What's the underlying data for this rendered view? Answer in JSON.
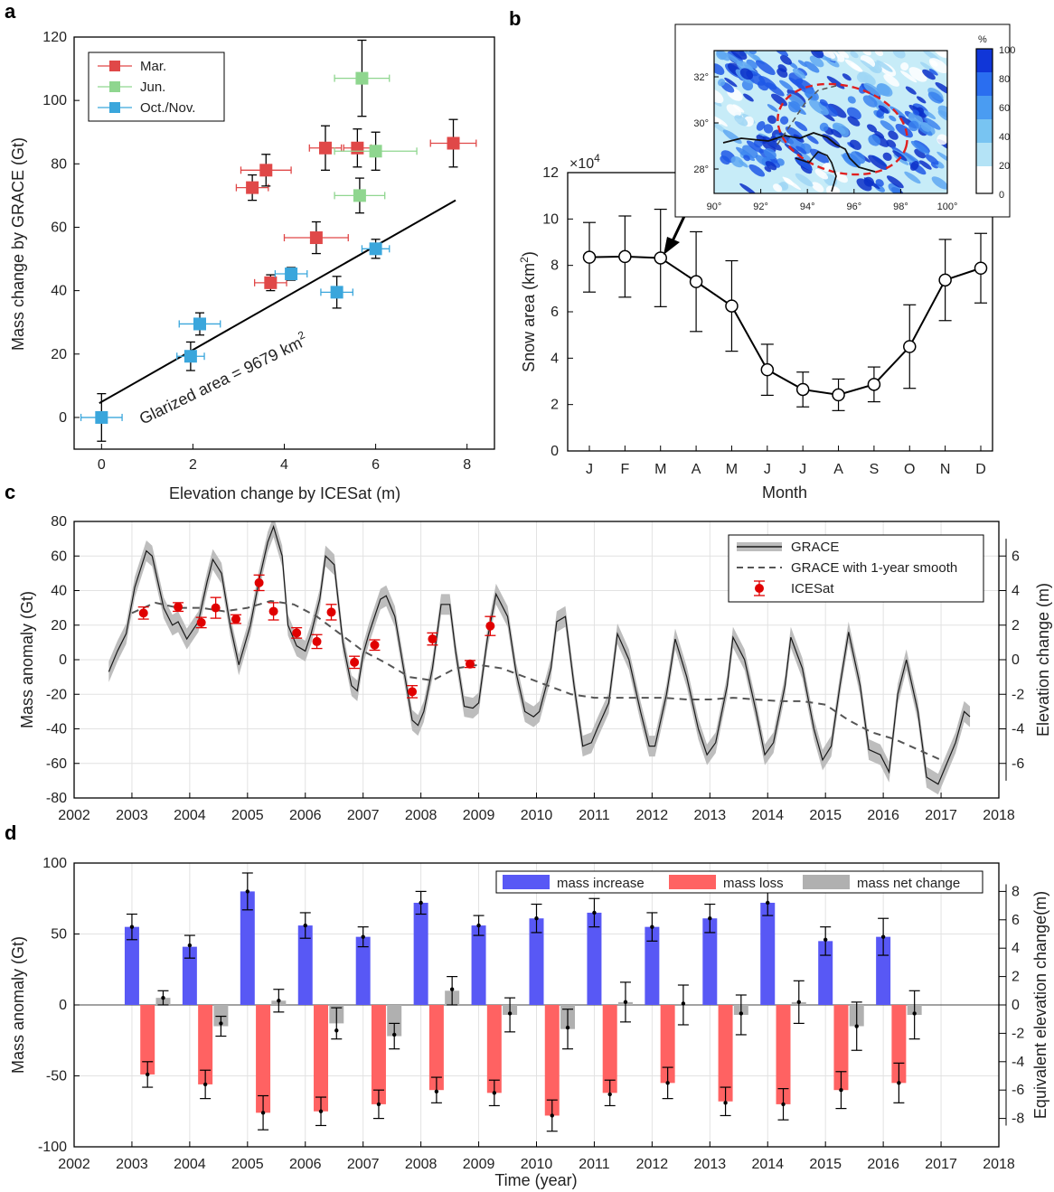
{
  "colors": {
    "mar": "#e04848",
    "jun": "#8fd68f",
    "octnov": "#3aa6dc",
    "grace_band": "#bdbdbd",
    "grace_line": "#1a1a1a",
    "smooth": "#555555",
    "icesat": "#e00000",
    "increase": "#5858f5",
    "loss": "#ff6262",
    "net": "#b0b0b0",
    "ellipse": "#e02020"
  },
  "panels": {
    "a": {
      "label": "a",
      "xlabel": "Elevation change by ICESat (m)",
      "ylabel": "Mass change by GRACE (Gt)",
      "annotation": "Glarized area = 9679 km",
      "annotation_sup": "2",
      "legend": [
        "Mar.",
        "Jun.",
        "Oct./Nov."
      ]
    },
    "b": {
      "label": "b",
      "xlabel": "Month",
      "ylabel": "Snow area (km",
      "ylabel_sup": "2",
      "ylabel_end": ")",
      "multiplier": "×10",
      "multiplier_sup": "4",
      "inset": {
        "xticks": [
          "90°",
          "92°",
          "94°",
          "96°",
          "98°",
          "100°"
        ],
        "yticks": [
          "32°",
          "30°",
          "28°"
        ],
        "colorbar_title": "%",
        "colorbar_ticks": [
          "100",
          "80",
          "60",
          "40",
          "20",
          "0"
        ],
        "icon": "snow-cover-map"
      }
    },
    "c": {
      "label": "c",
      "xlabel": "",
      "ylabel": "Mass anomaly (Gt)",
      "y2label": "Elevation change (m)",
      "legend": [
        "GRACE",
        "GRACE with 1-year smooth",
        "ICESat"
      ]
    },
    "d": {
      "label": "d",
      "xlabel": "Time (year)",
      "ylabel": "Mass anomaly (Gt)",
      "y2label": "Equivalent elevation change(m)",
      "legend": [
        "mass increase",
        "mass loss",
        "mass net change"
      ]
    }
  },
  "chart_data": [
    {
      "type": "scatter",
      "panel": "a",
      "xlim": [
        -0.6,
        8.6
      ],
      "ylim": [
        -10,
        120
      ],
      "xticks": [
        0,
        2,
        4,
        6,
        8
      ],
      "yticks": [
        0,
        20,
        40,
        60,
        80,
        100,
        120
      ],
      "grid": false,
      "legend_position": "top-left",
      "series": [
        {
          "name": "Mar.",
          "color_key": "mar",
          "points": [
            {
              "x": 3.3,
              "y": 72.5,
              "xerr": 0.35,
              "yerr": 4
            },
            {
              "x": 3.6,
              "y": 78,
              "xerr": 0.55,
              "yerr": 5
            },
            {
              "x": 3.7,
              "y": 42.5,
              "xerr": 0.35,
              "yerr": 2.5
            },
            {
              "x": 4.7,
              "y": 56.7,
              "xerr": 0.7,
              "yerr": 5
            },
            {
              "x": 4.9,
              "y": 85,
              "xerr": 0.35,
              "yerr": 7
            },
            {
              "x": 5.6,
              "y": 85,
              "xerr": 0.3,
              "yerr": 6
            },
            {
              "x": 7.7,
              "y": 86.5,
              "xerr": 0.5,
              "yerr": 7.5
            }
          ]
        },
        {
          "name": "Jun.",
          "color_key": "jun",
          "points": [
            {
              "x": 5.7,
              "y": 107,
              "xerr": 0.6,
              "yerr": 12
            },
            {
              "x": 6.0,
              "y": 84,
              "xerr": 0.9,
              "yerr": 6
            },
            {
              "x": 5.65,
              "y": 70,
              "xerr": 0.55,
              "yerr": 5.5
            }
          ]
        },
        {
          "name": "Oct./Nov.",
          "color_key": "octnov",
          "points": [
            {
              "x": 0,
              "y": 0,
              "xerr": 0.45,
              "yerr": 7.5
            },
            {
              "x": 1.95,
              "y": 19.3,
              "xerr": 0.3,
              "yerr": 4.5
            },
            {
              "x": 2.15,
              "y": 29.5,
              "xerr": 0.45,
              "yerr": 3.5
            },
            {
              "x": 4.15,
              "y": 45.3,
              "xerr": 0.35,
              "yerr": 2
            },
            {
              "x": 5.15,
              "y": 39.5,
              "xerr": 0.35,
              "yerr": 5
            },
            {
              "x": 6.0,
              "y": 53.2,
              "xerr": 0.3,
              "yerr": 3
            }
          ]
        }
      ],
      "fit_line": {
        "x": [
          -0.05,
          7.75
        ],
        "y": [
          4.5,
          68.5
        ]
      }
    },
    {
      "type": "line",
      "panel": "b",
      "categories": [
        "J",
        "F",
        "M",
        "A",
        "M",
        "J",
        "J",
        "A",
        "S",
        "O",
        "N",
        "D"
      ],
      "values": [
        8.35,
        8.38,
        8.32,
        7.3,
        6.25,
        3.5,
        2.65,
        2.42,
        2.87,
        4.5,
        7.37,
        7.88
      ],
      "errors": [
        1.5,
        1.75,
        2.1,
        2.15,
        1.95,
        1.1,
        0.75,
        0.68,
        0.75,
        1.8,
        1.75,
        1.5
      ],
      "ylim": [
        0,
        12
      ],
      "yticks": [
        0,
        2,
        4,
        6,
        8,
        10,
        12
      ],
      "grid": false
    },
    {
      "type": "line",
      "panel": "c",
      "xlim": [
        2002,
        2018
      ],
      "ylim": [
        -80,
        80
      ],
      "y2lim": [
        -8,
        8
      ],
      "xticks": [
        2002,
        2003,
        2004,
        2005,
        2006,
        2007,
        2008,
        2009,
        2010,
        2011,
        2012,
        2013,
        2014,
        2015,
        2016,
        2017,
        2018
      ],
      "yticks": [
        -80,
        -60,
        -40,
        -20,
        0,
        20,
        40,
        60,
        80
      ],
      "y2ticks": [
        -6,
        -4,
        -2,
        0,
        2,
        4,
        6
      ],
      "grid": true,
      "legend_position": "top-right",
      "grace": {
        "name": "GRACE",
        "x": [
          2002.6,
          2002.75,
          2002.9,
          2003.05,
          2003.25,
          2003.35,
          2003.55,
          2003.7,
          2003.8,
          2003.95,
          2004.15,
          2004.3,
          2004.4,
          2004.55,
          2004.7,
          2004.85,
          2005.05,
          2005.2,
          2005.35,
          2005.45,
          2005.6,
          2005.7,
          2005.85,
          2006.0,
          2006.1,
          2006.25,
          2006.35,
          2006.5,
          2006.65,
          2006.8,
          2006.9,
          2007.0,
          2007.1,
          2007.3,
          2007.4,
          2007.55,
          2007.7,
          2007.85,
          2007.95,
          2008.05,
          2008.2,
          2008.35,
          2008.5,
          2008.6,
          2008.75,
          2008.9,
          2009.0,
          2009.15,
          2009.3,
          2009.5,
          2009.65,
          2009.8,
          2009.95,
          2010.05,
          2010.25,
          2010.35,
          2010.5,
          2010.65,
          2010.8,
          2010.95,
          2011.05,
          2011.25,
          2011.4,
          2011.6,
          2011.8,
          2011.95,
          2012.05,
          2012.25,
          2012.4,
          2012.6,
          2012.8,
          2012.95,
          2013.1,
          2013.3,
          2013.4,
          2013.6,
          2013.8,
          2013.95,
          2014.1,
          2014.3,
          2014.4,
          2014.6,
          2014.8,
          2014.95,
          2015.1,
          2015.25,
          2015.4,
          2015.6,
          2015.75,
          2015.95,
          2016.1,
          2016.25,
          2016.4,
          2016.6,
          2016.75,
          2016.95,
          2017.1,
          2017.25,
          2017.4,
          2017.5
        ],
        "y": [
          -7,
          5,
          15,
          42,
          63,
          60,
          30,
          20,
          22,
          12,
          22,
          45,
          58,
          50,
          20,
          -3,
          20,
          46,
          68,
          77,
          60,
          20,
          8,
          5,
          15,
          35,
          60,
          55,
          10,
          -15,
          -18,
          3,
          15,
          35,
          37,
          25,
          -5,
          -35,
          -38,
          -30,
          -5,
          32,
          32,
          5,
          -27,
          -28,
          -25,
          12,
          38,
          25,
          -8,
          -30,
          -33,
          -30,
          -5,
          22,
          25,
          -15,
          -50,
          -48,
          -40,
          -25,
          15,
          0,
          -30,
          -50,
          -50,
          -20,
          12,
          -10,
          -40,
          -55,
          -48,
          -15,
          13,
          0,
          -30,
          -55,
          -48,
          -15,
          13,
          -5,
          -40,
          -58,
          -50,
          -15,
          16,
          -15,
          -52,
          -55,
          -65,
          -20,
          0,
          -30,
          -68,
          -72,
          -60,
          -48,
          -30,
          -33
        ],
        "band": 6
      },
      "smooth": {
        "name": "GRACE with 1-year smooth",
        "x": [
          2003.0,
          2003.4,
          2003.8,
          2004.2,
          2004.6,
          2005.0,
          2005.4,
          2005.8,
          2006.2,
          2006.6,
          2007.0,
          2007.4,
          2007.8,
          2008.2,
          2008.6,
          2009.0,
          2009.4,
          2009.8,
          2010.2,
          2010.6,
          2011.0,
          2011.4,
          2011.8,
          2012.2,
          2012.6,
          2013.0,
          2013.4,
          2013.8,
          2014.2,
          2014.6,
          2015.0,
          2015.4,
          2015.8,
          2016.2,
          2016.6,
          2017.0
        ],
        "y": [
          27,
          33,
          30,
          30,
          28,
          30,
          34,
          32,
          25,
          15,
          5,
          -2,
          -10,
          -12,
          -5,
          -3,
          -5,
          -10,
          -15,
          -20,
          -22,
          -22,
          -22,
          -22,
          -23,
          -23,
          -22,
          -23,
          -24,
          -24,
          -26,
          -35,
          -42,
          -46,
          -52,
          -58
        ]
      },
      "icesat": {
        "name": "ICESat",
        "points": [
          {
            "x": 2003.2,
            "y": 2.7,
            "err": 0.35
          },
          {
            "x": 2003.8,
            "y": 3.05,
            "err": 0.25
          },
          {
            "x": 2004.2,
            "y": 2.15,
            "err": 0.3
          },
          {
            "x": 2004.45,
            "y": 3.0,
            "err": 0.6
          },
          {
            "x": 2004.8,
            "y": 2.35,
            "err": 0.25
          },
          {
            "x": 2005.2,
            "y": 4.45,
            "err": 0.45
          },
          {
            "x": 2005.45,
            "y": 2.8,
            "err": 0.5
          },
          {
            "x": 2005.85,
            "y": 1.55,
            "err": 0.3
          },
          {
            "x": 2006.2,
            "y": 1.05,
            "err": 0.4
          },
          {
            "x": 2006.45,
            "y": 2.75,
            "err": 0.45
          },
          {
            "x": 2006.85,
            "y": -0.15,
            "err": 0.35
          },
          {
            "x": 2007.2,
            "y": 0.85,
            "err": 0.3
          },
          {
            "x": 2007.85,
            "y": -1.85,
            "err": 0.35
          },
          {
            "x": 2008.2,
            "y": 1.2,
            "err": 0.35
          },
          {
            "x": 2008.85,
            "y": -0.25,
            "err": 0.2
          },
          {
            "x": 2009.2,
            "y": 1.95,
            "err": 0.55
          }
        ]
      }
    },
    {
      "type": "bar",
      "panel": "d",
      "xlim": [
        2002,
        2018
      ],
      "ylim": [
        -100,
        100
      ],
      "y2lim": [
        -10,
        10
      ],
      "xticks": [
        2002,
        2003,
        2004,
        2005,
        2006,
        2007,
        2008,
        2009,
        2010,
        2011,
        2012,
        2013,
        2014,
        2015,
        2016,
        2017,
        2018
      ],
      "yticks": [
        -100,
        -50,
        0,
        50,
        100
      ],
      "y2ticks": [
        -8,
        -6,
        -4,
        -2,
        0,
        2,
        4,
        6,
        8
      ],
      "grid": true,
      "legend_position": "top-right",
      "categories": [
        "2003",
        "2004",
        "2005",
        "2006",
        "2007",
        "2008",
        "2009",
        "2010",
        "2011",
        "2012",
        "2013",
        "2014",
        "2015",
        "2016"
      ],
      "series": [
        {
          "name": "mass increase",
          "color_key": "increase",
          "values": [
            55,
            41,
            80,
            56,
            48,
            72,
            56,
            61,
            65,
            55,
            61,
            72,
            45,
            48
          ],
          "errors": [
            9,
            8,
            13,
            9,
            7,
            8,
            7,
            10,
            10,
            10,
            10,
            9,
            10,
            13
          ],
          "markers": [
            5.5,
            4.2,
            8.0,
            5.6,
            4.8,
            7.2,
            5.6,
            6.1,
            6.5,
            5.5,
            6.1,
            7.2,
            4.6,
            4.8
          ]
        },
        {
          "name": "mass loss",
          "color_key": "loss",
          "values": [
            -49,
            -56,
            -76,
            -75,
            -70,
            -60,
            -62,
            -78,
            -62,
            -55,
            -68,
            -70,
            -60,
            -55
          ],
          "errors": [
            9,
            10,
            12,
            10,
            10,
            9,
            9,
            11,
            9,
            11,
            10,
            11,
            13,
            14
          ],
          "markers": [
            -4.9,
            -5.6,
            -7.6,
            -7.5,
            -7.0,
            -6.1,
            -6.2,
            -7.8,
            -6.3,
            -5.5,
            -6.9,
            -7.0,
            -6.0,
            -5.5
          ]
        },
        {
          "name": "mass net change",
          "color_key": "net",
          "values": [
            5,
            -15,
            3,
            -13,
            -22,
            10,
            -7,
            -17,
            2,
            0,
            -7,
            2,
            -15,
            -7
          ],
          "errors": [
            5,
            7,
            8,
            11,
            9,
            10,
            12,
            14,
            14,
            14,
            14,
            15,
            17,
            17
          ],
          "markers": [
            0.5,
            -1.3,
            0.3,
            -1.8,
            -2.1,
            1.1,
            -0.6,
            -1.6,
            0.2,
            0.1,
            -0.6,
            0.2,
            -1.5,
            -0.6
          ]
        }
      ]
    }
  ]
}
